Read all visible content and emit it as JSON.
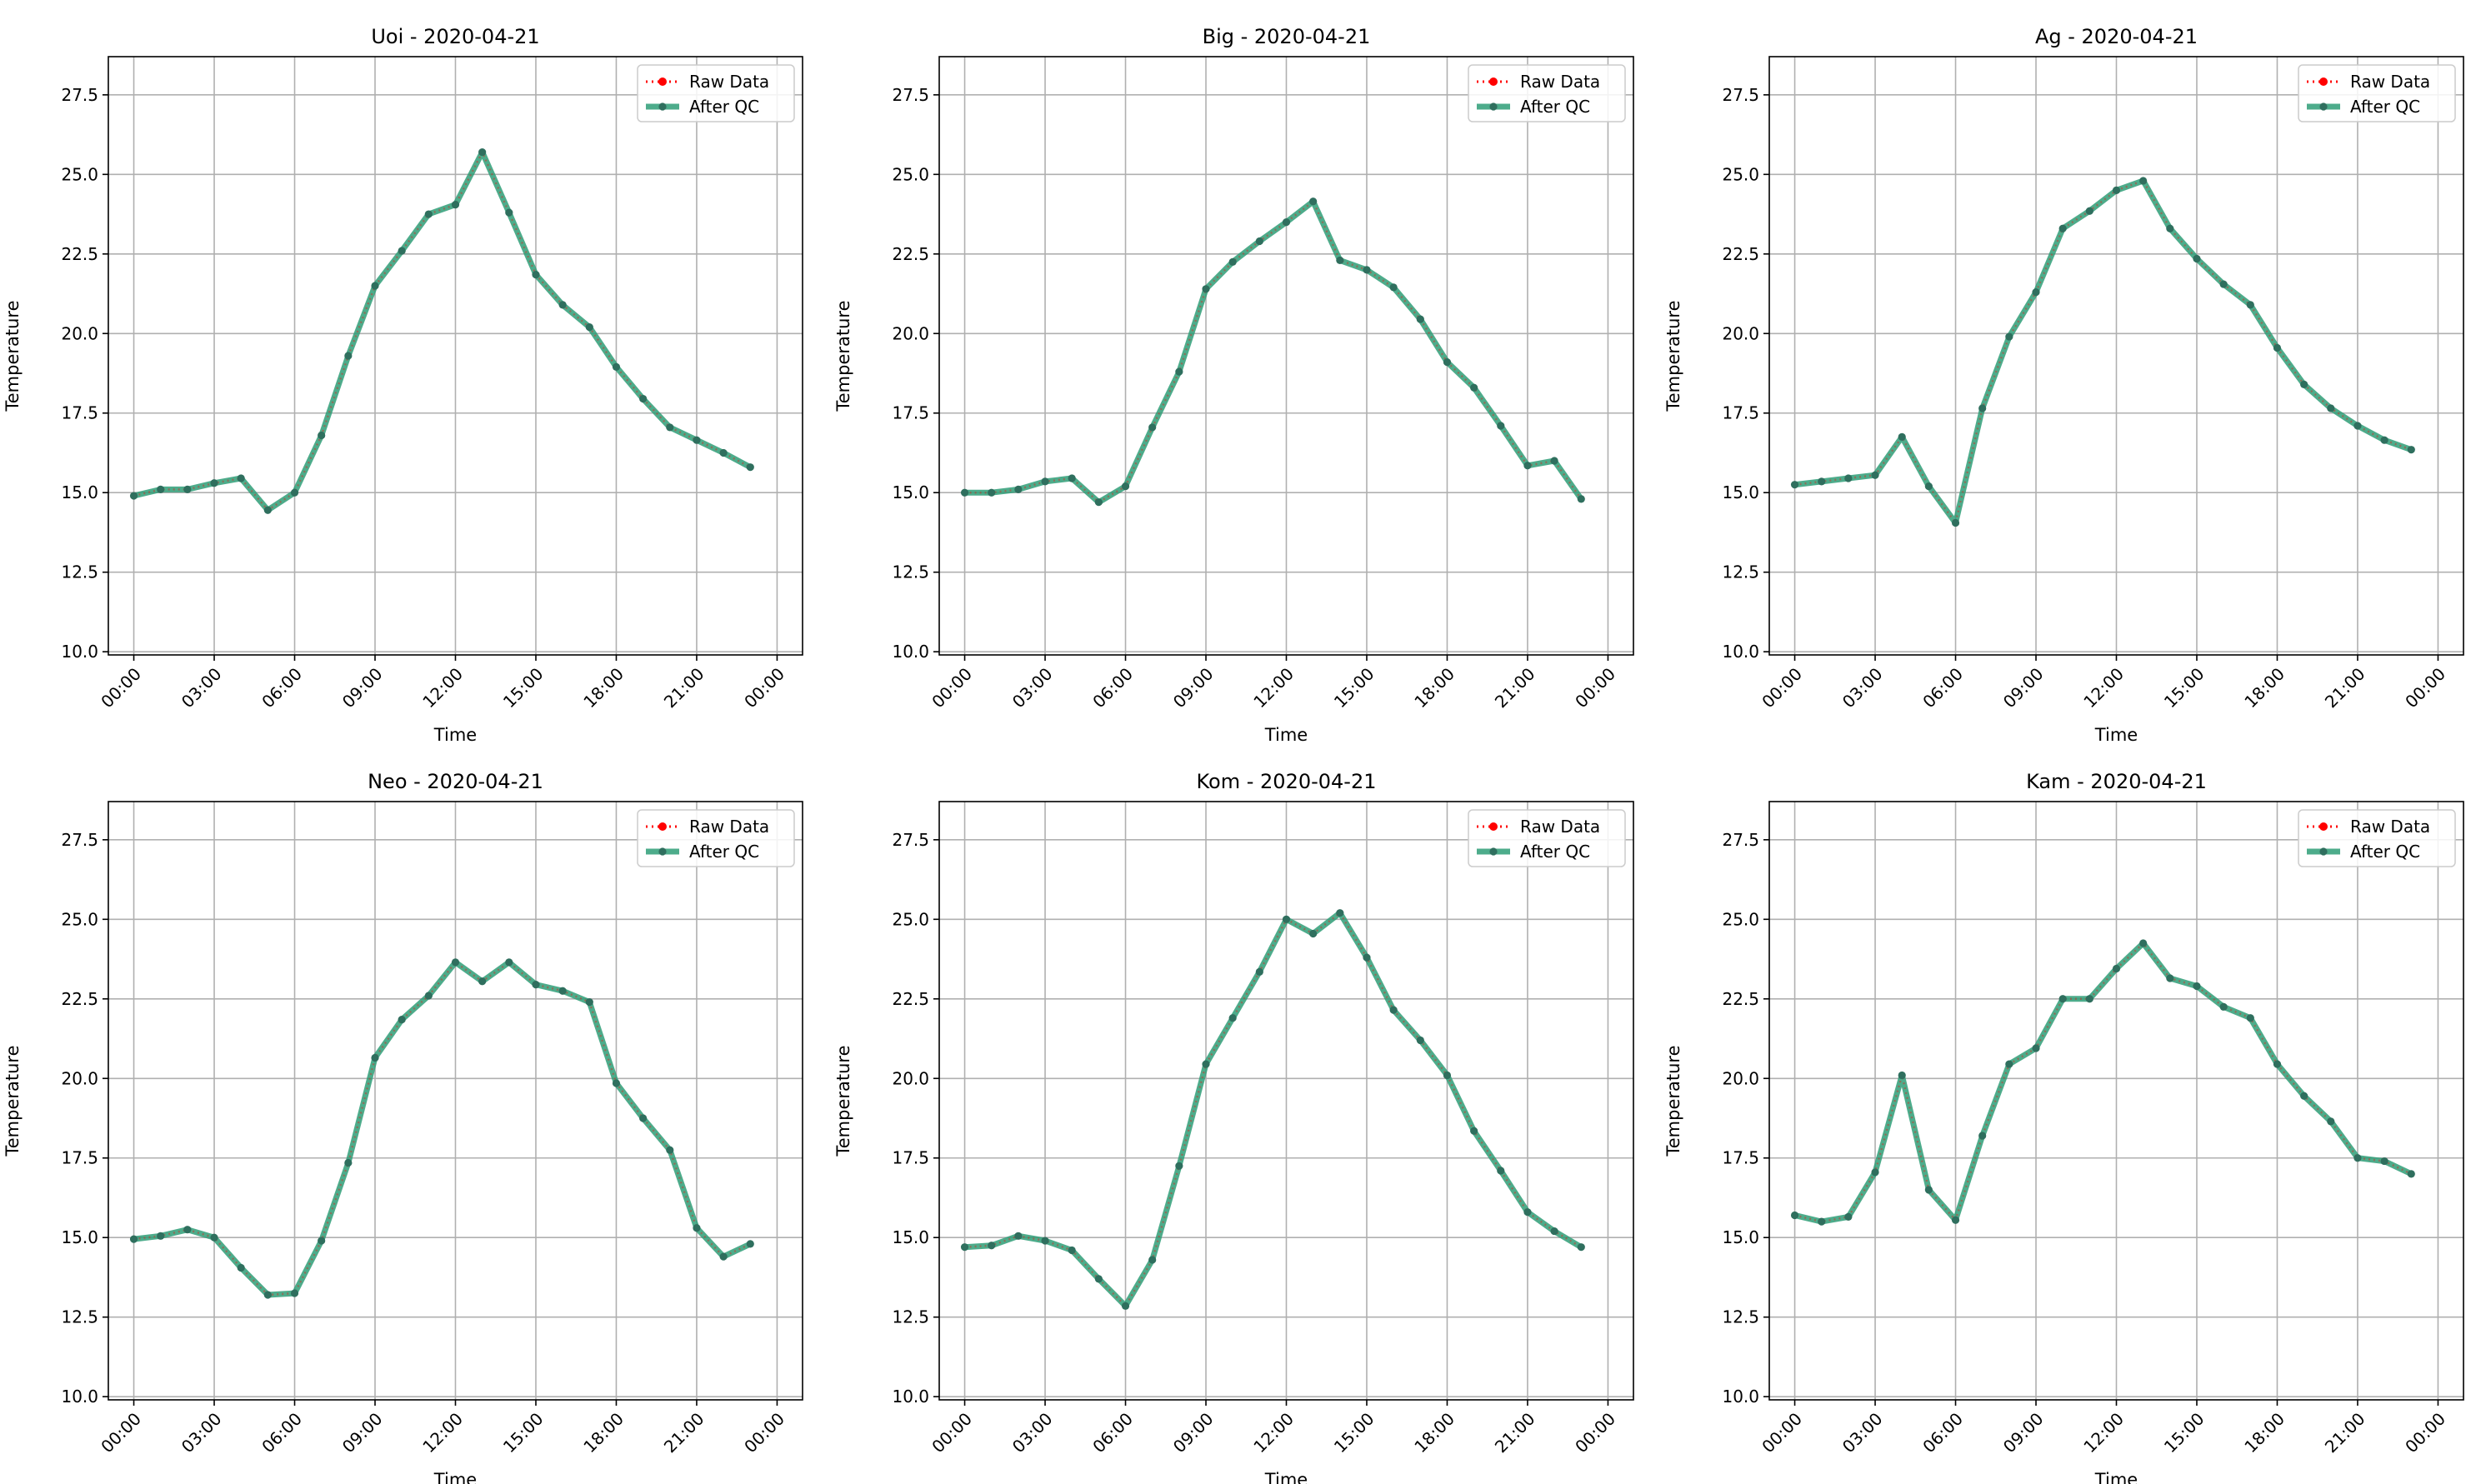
{
  "chart_data": [
    {
      "type": "line",
      "title": "Uoi - 2020-04-21",
      "xlabel": "Time",
      "ylabel": "Temperature",
      "ylim": [
        9.9,
        28.7
      ],
      "xlim": [
        "2020-04-20 23:03",
        "2020-04-22 00:57"
      ],
      "y_ticks": [
        10.0,
        12.5,
        15.0,
        17.5,
        20.0,
        22.5,
        25.0,
        27.5
      ],
      "x_ticks": [
        "00:00",
        "03:00",
        "06:00",
        "09:00",
        "12:00",
        "15:00",
        "18:00",
        "21:00",
        "00:00"
      ],
      "grid": true,
      "legend": "top-right",
      "x": [
        "00:00",
        "01:00",
        "02:00",
        "03:00",
        "04:00",
        "05:00",
        "06:00",
        "07:00",
        "08:00",
        "09:00",
        "10:00",
        "11:00",
        "12:00",
        "13:00",
        "14:00",
        "15:00",
        "16:00",
        "17:00",
        "18:00",
        "19:00",
        "20:00",
        "21:00",
        "22:00",
        "23:00"
      ],
      "series": [
        {
          "name": "Raw Data",
          "color": "#ff0000",
          "values": [
            14.9,
            15.1,
            15.1,
            15.3,
            15.45,
            14.45,
            15.0,
            16.8,
            19.3,
            21.5,
            22.6,
            23.75,
            24.05,
            25.7,
            23.8,
            21.85,
            20.9,
            20.2,
            18.95,
            17.95,
            17.05,
            16.65,
            16.25,
            15.8
          ]
        },
        {
          "name": "After QC",
          "color": "#2e9d77",
          "values": [
            14.9,
            15.1,
            15.1,
            15.3,
            15.45,
            14.45,
            15.0,
            16.8,
            19.3,
            21.5,
            22.6,
            23.75,
            24.05,
            25.7,
            23.8,
            21.85,
            20.9,
            20.2,
            18.95,
            17.95,
            17.05,
            16.65,
            16.25,
            15.8
          ]
        }
      ]
    },
    {
      "type": "line",
      "title": "Big - 2020-04-21",
      "xlabel": "Time",
      "ylabel": "Temperature",
      "ylim": [
        9.9,
        28.7
      ],
      "xlim": [
        "2020-04-20 23:03",
        "2020-04-22 00:57"
      ],
      "y_ticks": [
        10.0,
        12.5,
        15.0,
        17.5,
        20.0,
        22.5,
        25.0,
        27.5
      ],
      "x_ticks": [
        "00:00",
        "03:00",
        "06:00",
        "09:00",
        "12:00",
        "15:00",
        "18:00",
        "21:00",
        "00:00"
      ],
      "grid": true,
      "legend": "top-right",
      "x": [
        "00:00",
        "01:00",
        "02:00",
        "03:00",
        "04:00",
        "05:00",
        "06:00",
        "07:00",
        "08:00",
        "09:00",
        "10:00",
        "11:00",
        "12:00",
        "13:00",
        "14:00",
        "15:00",
        "16:00",
        "17:00",
        "18:00",
        "19:00",
        "20:00",
        "21:00",
        "22:00",
        "23:00"
      ],
      "series": [
        {
          "name": "Raw Data",
          "color": "#ff0000",
          "values": [
            15.0,
            15.0,
            15.1,
            15.35,
            15.45,
            14.7,
            15.2,
            17.05,
            18.8,
            21.4,
            22.25,
            22.9,
            23.5,
            24.15,
            22.3,
            22.0,
            21.45,
            20.45,
            19.1,
            18.3,
            17.1,
            15.85,
            16.0,
            14.8
          ]
        },
        {
          "name": "After QC",
          "color": "#2e9d77",
          "values": [
            15.0,
            15.0,
            15.1,
            15.35,
            15.45,
            14.7,
            15.2,
            17.05,
            18.8,
            21.4,
            22.25,
            22.9,
            23.5,
            24.15,
            22.3,
            22.0,
            21.45,
            20.45,
            19.1,
            18.3,
            17.1,
            15.85,
            16.0,
            14.8
          ]
        }
      ]
    },
    {
      "type": "line",
      "title": "Ag - 2020-04-21",
      "xlabel": "Time",
      "ylabel": "Temperature",
      "ylim": [
        9.9,
        28.7
      ],
      "xlim": [
        "2020-04-20 23:03",
        "2020-04-22 00:57"
      ],
      "y_ticks": [
        10.0,
        12.5,
        15.0,
        17.5,
        20.0,
        22.5,
        25.0,
        27.5
      ],
      "x_ticks": [
        "00:00",
        "03:00",
        "06:00",
        "09:00",
        "12:00",
        "15:00",
        "18:00",
        "21:00",
        "00:00"
      ],
      "grid": true,
      "legend": "top-right",
      "x": [
        "00:00",
        "01:00",
        "02:00",
        "03:00",
        "04:00",
        "05:00",
        "06:00",
        "07:00",
        "08:00",
        "09:00",
        "10:00",
        "11:00",
        "12:00",
        "13:00",
        "14:00",
        "15:00",
        "16:00",
        "17:00",
        "18:00",
        "19:00",
        "20:00",
        "21:00",
        "22:00",
        "23:00"
      ],
      "series": [
        {
          "name": "Raw Data",
          "color": "#ff0000",
          "values": [
            15.25,
            15.35,
            15.45,
            15.55,
            16.75,
            15.2,
            14.05,
            17.65,
            19.9,
            21.3,
            23.3,
            23.85,
            24.5,
            24.8,
            23.3,
            22.35,
            21.55,
            20.9,
            19.55,
            18.4,
            17.65,
            17.1,
            16.65,
            16.35
          ]
        },
        {
          "name": "After QC",
          "color": "#2e9d77",
          "values": [
            15.25,
            15.35,
            15.45,
            15.55,
            16.75,
            15.2,
            14.05,
            17.65,
            19.9,
            21.3,
            23.3,
            23.85,
            24.5,
            24.8,
            23.3,
            22.35,
            21.55,
            20.9,
            19.55,
            18.4,
            17.65,
            17.1,
            16.65,
            16.35
          ]
        }
      ]
    },
    {
      "type": "line",
      "title": "Neo - 2020-04-21",
      "xlabel": "Time",
      "ylabel": "Temperature",
      "ylim": [
        9.9,
        28.7
      ],
      "xlim": [
        "2020-04-20 23:03",
        "2020-04-22 00:57"
      ],
      "y_ticks": [
        10.0,
        12.5,
        15.0,
        17.5,
        20.0,
        22.5,
        25.0,
        27.5
      ],
      "x_ticks": [
        "00:00",
        "03:00",
        "06:00",
        "09:00",
        "12:00",
        "15:00",
        "18:00",
        "21:00",
        "00:00"
      ],
      "grid": true,
      "legend": "top-right",
      "x": [
        "00:00",
        "01:00",
        "02:00",
        "03:00",
        "04:00",
        "05:00",
        "06:00",
        "07:00",
        "08:00",
        "09:00",
        "10:00",
        "11:00",
        "12:00",
        "13:00",
        "14:00",
        "15:00",
        "16:00",
        "17:00",
        "18:00",
        "19:00",
        "20:00",
        "21:00",
        "22:00",
        "23:00"
      ],
      "series": [
        {
          "name": "Raw Data",
          "color": "#ff0000",
          "values": [
            14.95,
            15.05,
            15.25,
            15.0,
            14.05,
            13.2,
            13.25,
            14.9,
            17.35,
            20.65,
            21.85,
            22.6,
            23.65,
            23.05,
            23.65,
            22.95,
            22.75,
            22.4,
            19.85,
            18.75,
            17.75,
            15.3,
            14.4,
            14.8
          ]
        },
        {
          "name": "After QC",
          "color": "#2e9d77",
          "values": [
            14.95,
            15.05,
            15.25,
            15.0,
            14.05,
            13.2,
            13.25,
            14.9,
            17.35,
            20.65,
            21.85,
            22.6,
            23.65,
            23.05,
            23.65,
            22.95,
            22.75,
            22.4,
            19.85,
            18.75,
            17.75,
            15.3,
            14.4,
            14.8
          ]
        }
      ]
    },
    {
      "type": "line",
      "title": "Kom - 2020-04-21",
      "xlabel": "Time",
      "ylabel": "Temperature",
      "ylim": [
        9.9,
        28.7
      ],
      "xlim": [
        "2020-04-20 23:03",
        "2020-04-22 00:57"
      ],
      "y_ticks": [
        10.0,
        12.5,
        15.0,
        17.5,
        20.0,
        22.5,
        25.0,
        27.5
      ],
      "x_ticks": [
        "00:00",
        "03:00",
        "06:00",
        "09:00",
        "12:00",
        "15:00",
        "18:00",
        "21:00",
        "00:00"
      ],
      "grid": true,
      "legend": "top-right",
      "x": [
        "00:00",
        "01:00",
        "02:00",
        "03:00",
        "04:00",
        "05:00",
        "06:00",
        "07:00",
        "08:00",
        "09:00",
        "10:00",
        "11:00",
        "12:00",
        "13:00",
        "14:00",
        "15:00",
        "16:00",
        "17:00",
        "18:00",
        "19:00",
        "20:00",
        "21:00",
        "22:00",
        "23:00"
      ],
      "series": [
        {
          "name": "Raw Data",
          "color": "#ff0000",
          "values": [
            14.7,
            14.75,
            15.05,
            14.9,
            14.6,
            13.7,
            12.85,
            14.3,
            17.25,
            20.45,
            21.9,
            23.35,
            25.0,
            24.55,
            25.2,
            23.8,
            22.15,
            21.2,
            20.1,
            18.35,
            17.1,
            15.8,
            15.2,
            14.7
          ]
        },
        {
          "name": "After QC",
          "color": "#2e9d77",
          "values": [
            14.7,
            14.75,
            15.05,
            14.9,
            14.6,
            13.7,
            12.85,
            14.3,
            17.25,
            20.45,
            21.9,
            23.35,
            25.0,
            24.55,
            25.2,
            23.8,
            22.15,
            21.2,
            20.1,
            18.35,
            17.1,
            15.8,
            15.2,
            14.7
          ]
        }
      ]
    },
    {
      "type": "line",
      "title": "Kam - 2020-04-21",
      "xlabel": "Time",
      "ylabel": "Temperature",
      "ylim": [
        9.9,
        28.7
      ],
      "xlim": [
        "2020-04-20 23:03",
        "2020-04-22 00:57"
      ],
      "y_ticks": [
        10.0,
        12.5,
        15.0,
        17.5,
        20.0,
        22.5,
        25.0,
        27.5
      ],
      "x_ticks": [
        "00:00",
        "03:00",
        "06:00",
        "09:00",
        "12:00",
        "15:00",
        "18:00",
        "21:00",
        "00:00"
      ],
      "grid": true,
      "legend": "top-right",
      "x": [
        "00:00",
        "01:00",
        "02:00",
        "03:00",
        "04:00",
        "05:00",
        "06:00",
        "07:00",
        "08:00",
        "09:00",
        "10:00",
        "11:00",
        "12:00",
        "13:00",
        "14:00",
        "15:00",
        "16:00",
        "17:00",
        "18:00",
        "19:00",
        "20:00",
        "21:00",
        "22:00",
        "23:00"
      ],
      "series": [
        {
          "name": "Raw Data",
          "color": "#ff0000",
          "values": [
            15.7,
            15.5,
            15.65,
            17.05,
            20.1,
            16.5,
            15.55,
            18.2,
            20.45,
            20.95,
            22.5,
            22.5,
            23.45,
            24.25,
            23.15,
            22.9,
            22.25,
            21.9,
            20.45,
            19.45,
            18.65,
            17.5,
            17.4,
            17.0
          ]
        },
        {
          "name": "After QC",
          "color": "#2e9d77",
          "values": [
            15.7,
            15.5,
            15.65,
            17.05,
            20.1,
            16.5,
            15.55,
            18.2,
            20.45,
            20.95,
            22.5,
            22.5,
            23.45,
            24.25,
            23.15,
            22.9,
            22.25,
            21.9,
            20.45,
            19.45,
            18.65,
            17.5,
            17.4,
            17.0
          ]
        }
      ]
    }
  ]
}
